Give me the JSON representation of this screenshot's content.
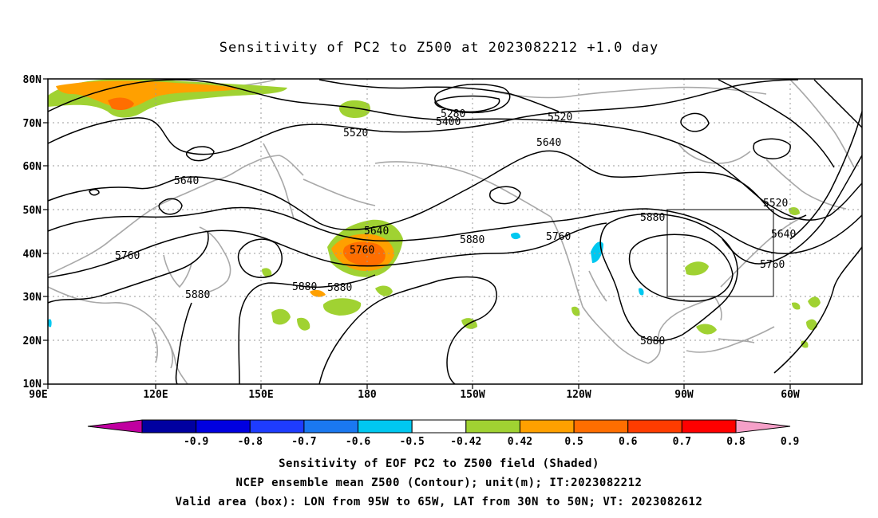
{
  "title": "Sensitivity of PC2 to Z500 at 2023082212 +1.0 day",
  "footer": {
    "line1": "Sensitivity of EOF PC2 to Z500 field (Shaded)",
    "line2": "NCEP ensemble mean Z500 (Contour); unit(m); IT:2023082212",
    "line3": "Valid area (box): LON from 95W to 65W, LAT from 30N to 50N; VT: 2023082612"
  },
  "map": {
    "lon_ticks": [
      "90E",
      "120E",
      "150E",
      "180",
      "150W",
      "120W",
      "90W",
      "60W"
    ],
    "lat_ticks": [
      "80N",
      "70N",
      "60N",
      "50N",
      "40N",
      "30N",
      "20N",
      "10N"
    ],
    "grid": true
  },
  "contour_labels": [
    "5280",
    "5400",
    "5520",
    "5520",
    "5640",
    "5640",
    "5640",
    "5520",
    "5640",
    "5760",
    "5760",
    "5880",
    "5880",
    "5880",
    "5880",
    "5880",
    "5760",
    "5760",
    "5880"
  ],
  "valid_box": {
    "lon_from": "95W",
    "lon_to": "65W",
    "lat_from": "30N",
    "lat_to": "50N"
  },
  "colorbar": {
    "labels": [
      "-0.9",
      "-0.8",
      "-0.7",
      "-0.6",
      "-0.5",
      "-0.42",
      "0.42",
      "0.5",
      "0.6",
      "0.7",
      "0.8",
      "0.9"
    ],
    "colors": [
      "#c000a0",
      "#0000a0",
      "#0000e0",
      "#1e3cff",
      "#1a78f0",
      "#00c8f0",
      "#ffffff",
      "#a0d232",
      "#ffa000",
      "#ff6e00",
      "#ff3c00",
      "#ff0000",
      "#f5a0c8"
    ]
  },
  "colors": {
    "land_outline": "#a8a8a8",
    "contour": "#000000",
    "grid": "#9a9a9a",
    "shade_green": "#a0d232",
    "shade_orange": "#ffa000",
    "shade_darkorange": "#ff6e00",
    "shade_cyan": "#00c8f0"
  }
}
